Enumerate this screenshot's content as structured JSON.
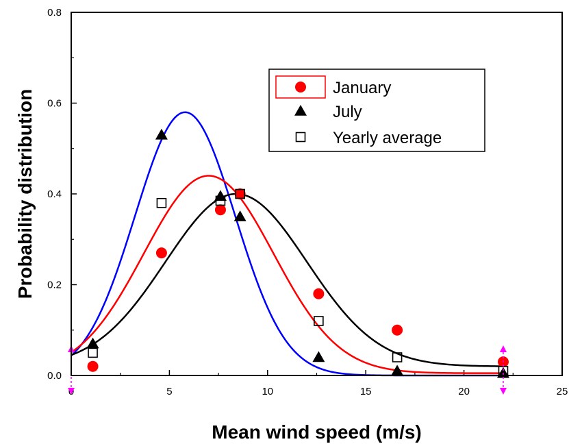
{
  "chart_data": {
    "type": "scatter",
    "title": "",
    "xlabel": "Mean wind speed (m/s)",
    "ylabel": "Probability distribution",
    "xlim": [
      0,
      25
    ],
    "ylim": [
      0,
      0.8
    ],
    "xticks": [
      0,
      5,
      10,
      15,
      20,
      25
    ],
    "xtick_labels": [
      "0",
      "5",
      "10",
      "15",
      "20",
      "25"
    ],
    "yticks": [
      0.0,
      0.2,
      0.4,
      0.6,
      0.8
    ],
    "ytick_labels": [
      "0.0",
      "0.2",
      "0.4",
      "0.6",
      "0.8"
    ],
    "grid": false,
    "legend_position": "top-right",
    "series": [
      {
        "name": "January",
        "marker": "circle",
        "color": "#ff0000",
        "x": [
          1.1,
          4.6,
          7.6,
          8.6,
          12.6,
          16.6,
          22.0
        ],
        "y": [
          0.02,
          0.27,
          0.365,
          0.4,
          0.18,
          0.1,
          0.03
        ]
      },
      {
        "name": "July",
        "marker": "triangle",
        "color": "#000000",
        "x": [
          1.1,
          4.6,
          7.6,
          8.6,
          12.6,
          16.6,
          22.0
        ],
        "y": [
          0.07,
          0.53,
          0.395,
          0.35,
          0.04,
          0.01,
          0.005
        ]
      },
      {
        "name": "Yearly average",
        "marker": "square-open",
        "color": "#000000",
        "x": [
          1.1,
          4.6,
          7.6,
          8.6,
          12.6,
          16.6,
          22.0
        ],
        "y": [
          0.05,
          0.38,
          0.385,
          0.4,
          0.12,
          0.04,
          0.01
        ]
      }
    ],
    "fit_curves": [
      {
        "color": "#0000ff",
        "peak_x": 5.8,
        "peak_y": 0.58,
        "sigma": 2.55,
        "baseline": 0.0,
        "x_start": 0,
        "x_end": 22
      },
      {
        "color": "#ff0000",
        "peak_x": 7.0,
        "peak_y": 0.44,
        "sigma": 3.3,
        "baseline": 0.005,
        "x_start": 0,
        "x_end": 22
      },
      {
        "color": "#000000",
        "peak_x": 8.4,
        "peak_y": 0.4,
        "sigma": 3.6,
        "baseline": 0.02,
        "x_start": 0,
        "x_end": 22
      }
    ],
    "annotation_color": "#ff00ff",
    "annotation_markers_x": [
      0,
      22
    ]
  }
}
